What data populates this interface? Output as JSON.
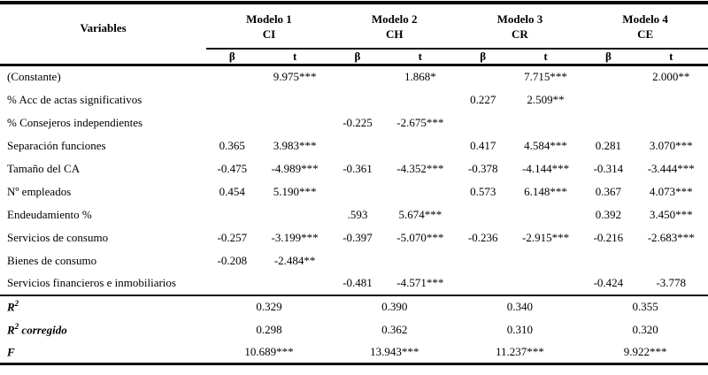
{
  "table": {
    "variables_header": "Variables",
    "beta_label": "β",
    "t_label": "t",
    "models": [
      {
        "name": "Modelo 1",
        "dependent": "CI"
      },
      {
        "name": "Modelo 2",
        "dependent": "CH"
      },
      {
        "name": "Modelo 3",
        "dependent": "CR"
      },
      {
        "name": "Modelo 4",
        "dependent": "CE"
      }
    ],
    "rows": [
      {
        "label": "(Constante)",
        "cells": [
          "",
          "9.975***",
          "",
          "1.868*",
          "",
          "7.715***",
          "",
          "2.000**"
        ]
      },
      {
        "label": "% Acc de actas significativos",
        "cells": [
          "",
          "",
          "",
          "",
          "0.227",
          "2.509**",
          "",
          ""
        ]
      },
      {
        "label": "% Consejeros independientes",
        "cells": [
          "",
          "",
          "-0.225",
          "-2.675***",
          "",
          "",
          "",
          ""
        ]
      },
      {
        "label": "Separación funciones",
        "cells": [
          "0.365",
          "3.983***",
          "",
          "",
          "0.417",
          "4.584***",
          "0.281",
          "3.070***"
        ]
      },
      {
        "label": "Tamaño del CA",
        "cells": [
          "-0.475",
          "-4.989***",
          "-0.361",
          "-4.352***",
          "-0.378",
          "-4.144***",
          "-0.314",
          "-3.444***"
        ]
      },
      {
        "label": "Nº empleados",
        "cells": [
          "0.454",
          "5.190***",
          "",
          "",
          "0.573",
          "6.148***",
          "0.367",
          "4.073***"
        ]
      },
      {
        "label": "Endeudamiento %",
        "cells": [
          "",
          "",
          ".593",
          "5.674***",
          "",
          "",
          "0.392",
          "3.450***"
        ]
      },
      {
        "label": "Servicios de consumo",
        "cells": [
          "-0.257",
          "-3.199***",
          "-0.397",
          "-5.070***",
          "-0.236",
          "-2.915***",
          "-0.216",
          "-2.683***"
        ]
      },
      {
        "label": "Bienes de consumo",
        "cells": [
          "-0.208",
          "-2.484**",
          "",
          "",
          "",
          "",
          "",
          ""
        ]
      },
      {
        "label": "Servicios financieros e inmobiliarios",
        "cells": [
          "",
          "",
          "-0.481",
          "-4.571***",
          "",
          "",
          "-0.424",
          "-3.778"
        ]
      }
    ],
    "stats": [
      {
        "label_base": "R",
        "label_sup": "2",
        "label_rest": "",
        "values": [
          "0.329",
          "0.390",
          "0.340",
          "0.355"
        ]
      },
      {
        "label_base": "R",
        "label_sup": "2",
        "label_rest": " corregido",
        "values": [
          "0.298",
          "0.362",
          "0.310",
          "0.320"
        ]
      },
      {
        "label_base": "F",
        "label_sup": "",
        "label_rest": "",
        "values": [
          "10.689***",
          "13.943***",
          "11.237***",
          "9.922***"
        ]
      }
    ]
  }
}
